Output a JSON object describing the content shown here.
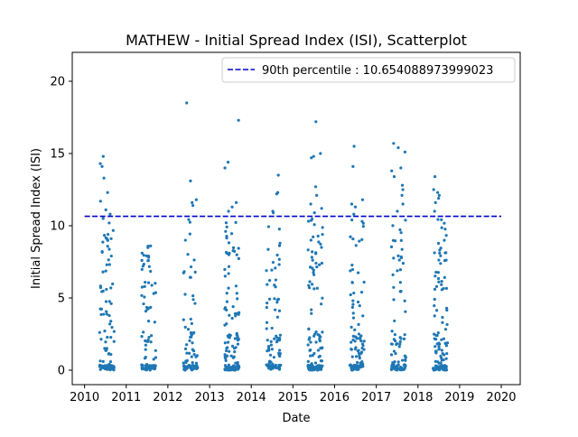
{
  "chart_data": {
    "type": "scatter",
    "title": "MATHEW - Initial Spread Index (ISI), Scatterplot",
    "xlabel": "Date",
    "ylabel": "Initial Spread Index (ISI)",
    "xlim": [
      "2009-09-15",
      "2020-06-15"
    ],
    "ylim": [
      -1.0,
      22.0
    ],
    "x_ticks": [
      "2010",
      "2011",
      "2012",
      "2013",
      "2014",
      "2015",
      "2016",
      "2017",
      "2018",
      "2019",
      "2020"
    ],
    "y_ticks": [
      0,
      5,
      10,
      15,
      20
    ],
    "grid": false,
    "legend_position": "top-right",
    "legend": {
      "label": "90th percentile : 10.654088973999023"
    },
    "reference_line": {
      "name": "90th percentile",
      "value": 10.654088973999023,
      "x_start": "2010-01-01",
      "x_end": "2020-01-01",
      "style": "dashed",
      "color": "#0000cc"
    },
    "point_color": "#1f77b4",
    "seasons": [
      {
        "year": 2010,
        "start": "2010-05-01",
        "end": "2010-09-30",
        "count": 115,
        "max": 14.8,
        "highs": [
          14.8,
          14.3,
          14.1,
          13.3,
          12.3,
          11.7,
          11.1,
          10.8,
          10.5
        ]
      },
      {
        "year": 2011,
        "start": "2011-05-01",
        "end": "2011-09-30",
        "count": 95,
        "max": 8.6,
        "highs": [
          8.6,
          8.1,
          7.9,
          7.6
        ]
      },
      {
        "year": 2012,
        "start": "2012-05-01",
        "end": "2012-09-30",
        "count": 90,
        "max": 18.5,
        "highs": [
          18.5,
          13.1,
          11.8,
          11.6,
          11.4
        ]
      },
      {
        "year": 2013,
        "start": "2013-05-01",
        "end": "2013-09-30",
        "count": 135,
        "max": 17.3,
        "highs": [
          17.3,
          14.4,
          14.0,
          11.6,
          11.3,
          11.0
        ]
      },
      {
        "year": 2014,
        "start": "2014-05-01",
        "end": "2014-09-30",
        "count": 95,
        "max": 13.5,
        "highs": [
          13.5,
          12.3,
          12.2,
          11.0,
          10.9
        ]
      },
      {
        "year": 2015,
        "start": "2015-05-01",
        "end": "2015-09-30",
        "count": 140,
        "max": 17.2,
        "highs": [
          17.2,
          15.0,
          14.8,
          14.7,
          12.7,
          12.1,
          11.5,
          11.2,
          10.9
        ]
      },
      {
        "year": 2016,
        "start": "2016-05-01",
        "end": "2016-09-30",
        "count": 115,
        "max": 15.5,
        "highs": [
          15.5,
          14.1,
          11.8,
          11.5,
          11.3,
          10.8
        ]
      },
      {
        "year": 2017,
        "start": "2017-05-01",
        "end": "2017-09-30",
        "count": 110,
        "max": 15.7,
        "highs": [
          15.7,
          15.4,
          15.1,
          14.0,
          13.8,
          13.4,
          12.8,
          12.5,
          12.1,
          11.5,
          11.0
        ]
      },
      {
        "year": 2018,
        "start": "2018-05-01",
        "end": "2018-09-30",
        "count": 130,
        "max": 13.4,
        "highs": [
          13.4,
          12.5,
          12.3,
          12.1,
          11.9,
          11.6,
          11.0
        ]
      }
    ]
  }
}
